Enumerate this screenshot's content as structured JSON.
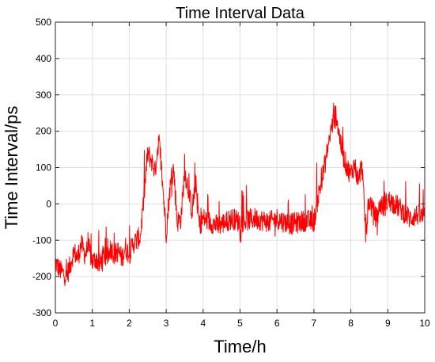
{
  "chart_data": {
    "type": "line",
    "title": "Time Interval Data",
    "xlabel": "Time/h",
    "ylabel": "Time Interval/ps",
    "xlim": [
      0,
      10
    ],
    "ylim": [
      -300,
      500
    ],
    "xticks": [
      0,
      1,
      2,
      3,
      4,
      5,
      6,
      7,
      8,
      9,
      10
    ],
    "yticks": [
      -300,
      -200,
      -100,
      0,
      100,
      200,
      300,
      400,
      500
    ],
    "grid": true,
    "legend": "none",
    "series": [
      {
        "color": "#ff0000",
        "x": [
          0,
          0.1,
          0.2,
          0.3,
          0.4,
          0.5,
          0.6,
          0.7,
          0.8,
          0.9,
          1.0,
          1.1,
          1.2,
          1.3,
          1.4,
          1.5,
          1.6,
          1.7,
          1.8,
          1.9,
          2.0,
          2.1,
          2.2,
          2.3,
          2.4,
          2.5,
          2.6,
          2.7,
          2.8,
          2.9,
          3.0,
          3.1,
          3.2,
          3.3,
          3.4,
          3.5,
          3.6,
          3.7,
          3.8,
          3.9,
          4.0,
          4.2,
          4.4,
          4.6,
          4.8,
          5.0,
          5.2,
          5.4,
          5.6,
          5.8,
          6.0,
          6.2,
          6.4,
          6.6,
          6.8,
          7.0,
          7.1,
          7.2,
          7.3,
          7.4,
          7.5,
          7.6,
          7.7,
          7.8,
          7.9,
          8.0,
          8.1,
          8.2,
          8.3,
          8.4,
          8.5,
          8.6,
          8.7,
          8.8,
          8.9,
          9.0,
          9.2,
          9.4,
          9.6,
          9.8,
          10.0
        ],
        "y": [
          -160,
          -180,
          -190,
          -200,
          -170,
          -130,
          -150,
          -110,
          -140,
          -120,
          -160,
          -150,
          -170,
          -140,
          -150,
          -120,
          -140,
          -130,
          -150,
          -120,
          -140,
          -110,
          -100,
          -90,
          20,
          140,
          120,
          90,
          180,
          60,
          -80,
          40,
          100,
          -50,
          -40,
          90,
          40,
          -20,
          60,
          -60,
          -40,
          -50,
          -60,
          -50,
          -40,
          -50,
          -45,
          -40,
          -45,
          -50,
          -40,
          -50,
          -55,
          -50,
          -45,
          -50,
          10,
          60,
          110,
          170,
          220,
          250,
          180,
          130,
          100,
          80,
          110,
          60,
          110,
          -80,
          10,
          -20,
          -40,
          0,
          -10,
          10,
          0,
          -20,
          -40,
          -30,
          -40
        ]
      }
    ]
  }
}
